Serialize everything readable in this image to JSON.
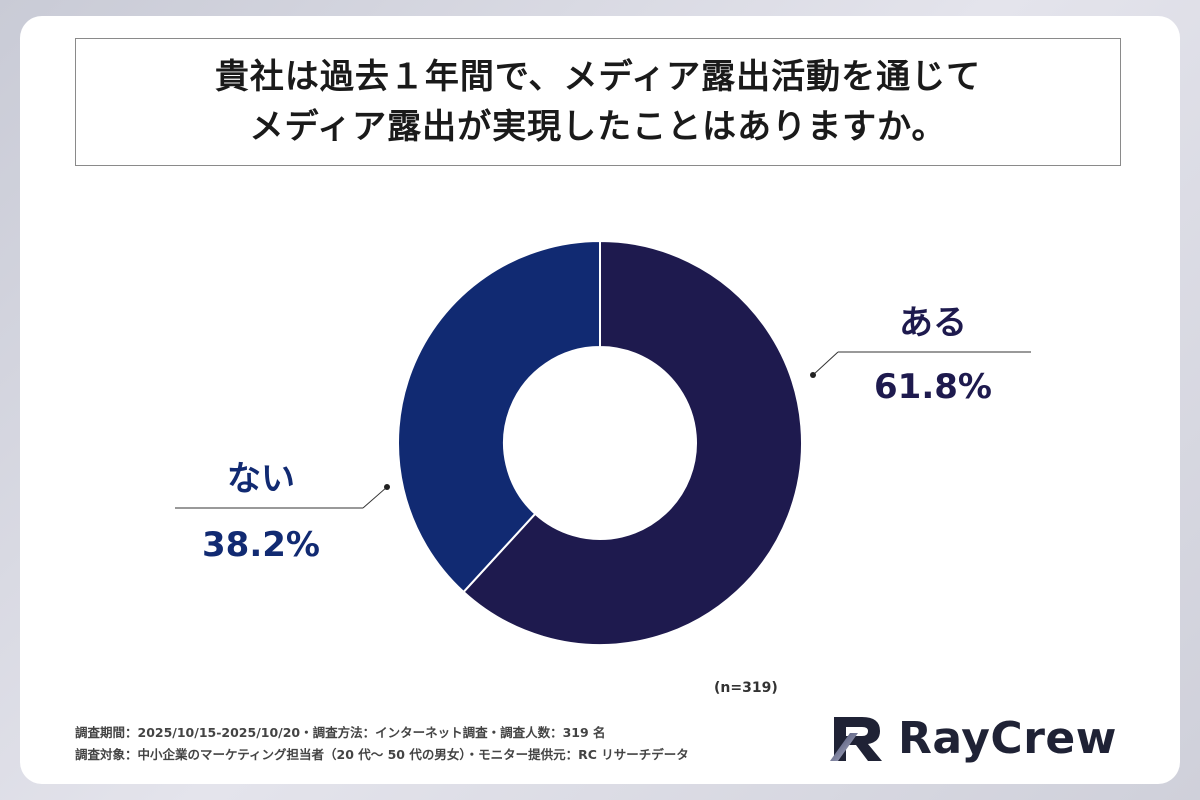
{
  "title": {
    "line1": "貴社は過去１年間で、メディア露出活動を通じて",
    "line2": "メディア露出が実現したことはありますか。"
  },
  "chart_data": {
    "type": "pie",
    "donut": true,
    "slices": [
      {
        "label": "ある",
        "value": 61.8,
        "display": "61.8%",
        "color": "#1e1a4e"
      },
      {
        "label": "ない",
        "value": 38.2,
        "display": "38.2%",
        "color": "#112a72"
      }
    ]
  },
  "sample_note": "(n=319)",
  "footer": {
    "line1": "調査期間：2025/10/15-2025/10/20・調査方法：インターネット調査・調査人数：319 名",
    "line2": "調査対象：中小企業のマーケティング担当者（20 代～ 50 代の男女）・モニター提供元：RC リサーチデータ"
  },
  "logo": {
    "text": "RayCrew"
  }
}
